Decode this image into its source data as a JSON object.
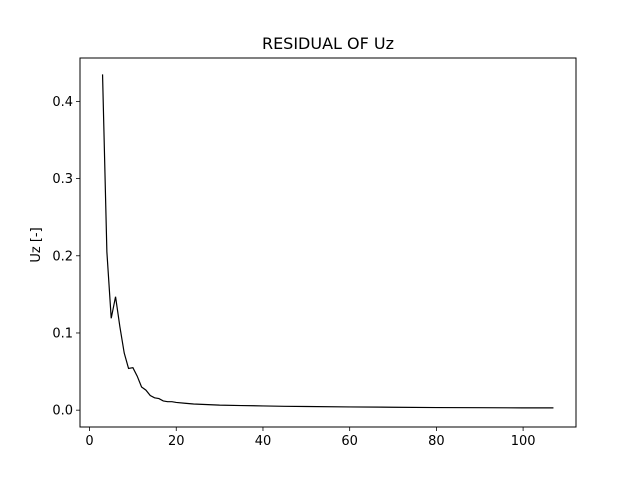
{
  "chart_data": {
    "type": "line",
    "title": "RESIDUAL OF Uz",
    "xlabel": "",
    "ylabel": "Uz [-]",
    "xlim": [
      -2.2,
      112.2
    ],
    "ylim": [
      -0.0218,
      0.4562
    ],
    "xticks": [
      0,
      20,
      40,
      60,
      80,
      100
    ],
    "yticks": [
      0.0,
      0.1,
      0.2,
      0.3,
      0.4
    ],
    "xtick_labels": [
      "0",
      "20",
      "40",
      "60",
      "80",
      "100"
    ],
    "ytick_labels": [
      "0.0",
      "0.1",
      "0.2",
      "0.3",
      "0.4"
    ],
    "grid": false,
    "line_color": "#000000",
    "series": [
      {
        "x": [
          3,
          4,
          5,
          6,
          7,
          8,
          9,
          10,
          11,
          12,
          13,
          14,
          15,
          16,
          17,
          18,
          19,
          20,
          22,
          24,
          26,
          28,
          30,
          35,
          40,
          45,
          50,
          60,
          70,
          80,
          90,
          100,
          107
        ],
        "y": [
          0.435,
          0.205,
          0.119,
          0.147,
          0.108,
          0.074,
          0.054,
          0.055,
          0.044,
          0.03,
          0.026,
          0.019,
          0.016,
          0.015,
          0.012,
          0.011,
          0.011,
          0.01,
          0.009,
          0.008,
          0.0075,
          0.007,
          0.0065,
          0.006,
          0.0055,
          0.005,
          0.0048,
          0.0042,
          0.0038,
          0.0034,
          0.0032,
          0.003,
          0.003
        ]
      }
    ]
  }
}
